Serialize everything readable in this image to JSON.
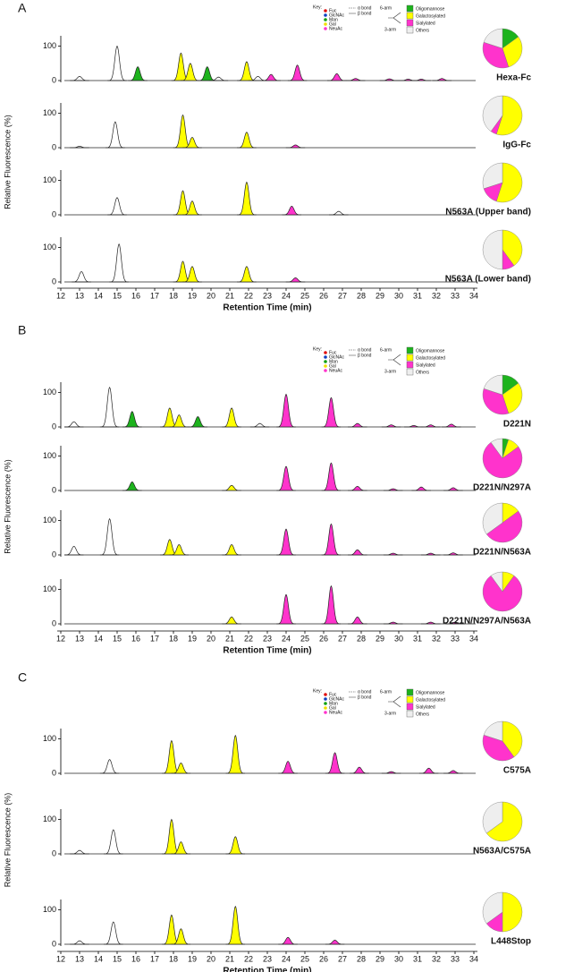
{
  "chart_data": [
    {
      "type": "chromatogram",
      "label": "A",
      "y_label": "Relative Fluorescence (%)",
      "x_label": "Retention Time (min)",
      "xlim": [
        12,
        34
      ],
      "xticks": [
        12,
        13,
        14,
        15,
        16,
        17,
        18,
        19,
        20,
        21,
        22,
        23,
        24,
        25,
        26,
        27,
        28,
        29,
        30,
        31,
        32,
        33,
        34
      ],
      "legend": {
        "labels": [
          "Oligomannose",
          "Galactosylated",
          "Sialylated",
          "Others"
        ],
        "colors": [
          "#1db31d",
          "#ffff00",
          "#ff33cc",
          "#eeeeee"
        ]
      },
      "key": {
        "title": "Key:",
        "items": [
          {
            "name": "Fuc",
            "color": "#e01010"
          },
          {
            "name": "GlcNAc",
            "color": "#1040c0"
          },
          {
            "name": "Man",
            "color": "#10a010"
          },
          {
            "name": "Gal",
            "color": "#f0e000"
          },
          {
            "name": "NeuAc",
            "color": "#ff33cc"
          }
        ],
        "bonds": [
          "α bond",
          "β bond"
        ],
        "arms": [
          "6-arm",
          "3-arm"
        ]
      },
      "traces": [
        {
          "name": "Hexa-Fc",
          "ylim": [
            0,
            130
          ],
          "yticks": [
            0,
            100
          ],
          "x": [
            13,
            15,
            16.1,
            18.4,
            18.9,
            19.8,
            20.4,
            21.9,
            22.5,
            23.2,
            24.6,
            26.7,
            27.7,
            29.5,
            30.5,
            31.2,
            32.3
          ],
          "values": [
            12,
            100,
            40,
            80,
            50,
            40,
            10,
            55,
            12,
            18,
            45,
            20,
            6,
            5,
            4,
            4,
            6
          ],
          "fills": [
            null,
            null,
            "#1db31d",
            "#ffff00",
            "#ffff00",
            "#1db31d",
            null,
            "#ffff00",
            null,
            "#ff33cc",
            "#ff33cc",
            "#ff33cc",
            "#ff33cc",
            "#ff33cc",
            "#ff33cc",
            "#ff33cc",
            "#ff33cc"
          ],
          "pie": [
            15,
            30,
            35,
            20
          ]
        },
        {
          "name": "IgG-Fc",
          "ylim": [
            0,
            130
          ],
          "yticks": [
            0,
            100
          ],
          "x": [
            13,
            14.9,
            18.5,
            19,
            21.9,
            24.5
          ],
          "values": [
            4,
            75,
            95,
            30,
            45,
            8
          ],
          "fills": [
            null,
            null,
            "#ffff00",
            "#ffff00",
            "#ffff00",
            "#ff33cc"
          ],
          "pie": [
            0,
            55,
            5,
            40
          ]
        },
        {
          "name": "N563A (Upper band)",
          "ylim": [
            0,
            130
          ],
          "yticks": [
            0,
            100
          ],
          "x": [
            15,
            18.5,
            19,
            21.9,
            24.3,
            26.8
          ],
          "values": [
            50,
            70,
            40,
            95,
            25,
            10
          ],
          "fills": [
            null,
            "#ffff00",
            "#ffff00",
            "#ffff00",
            "#ff33cc",
            null
          ],
          "pie": [
            0,
            55,
            15,
            30
          ]
        },
        {
          "name": "N563A (Lower band)",
          "ylim": [
            0,
            130
          ],
          "yticks": [
            0,
            100
          ],
          "x": [
            13.1,
            15.1,
            18.5,
            19,
            21.9,
            24.5
          ],
          "values": [
            30,
            110,
            60,
            45,
            45,
            12
          ],
          "fills": [
            null,
            null,
            "#ffff00",
            "#ffff00",
            "#ffff00",
            "#ff33cc"
          ],
          "pie": [
            0,
            40,
            10,
            50
          ]
        }
      ]
    },
    {
      "type": "chromatogram",
      "label": "B",
      "y_label": "Relative Fluorescence (%)",
      "x_label": "Retention Time (min)",
      "xlim": [
        12,
        34
      ],
      "xticks": [
        12,
        13,
        14,
        15,
        16,
        17,
        18,
        19,
        20,
        21,
        22,
        23,
        24,
        25,
        26,
        27,
        28,
        29,
        30,
        31,
        32,
        33,
        34
      ],
      "legend": {
        "labels": [
          "Oligomannose",
          "Galactosylated",
          "Sialylated",
          "Others"
        ],
        "colors": [
          "#1db31d",
          "#ffff00",
          "#ff33cc",
          "#eeeeee"
        ]
      },
      "key": {
        "title": "Key:",
        "items": [
          {
            "name": "Fuc",
            "color": "#e01010"
          },
          {
            "name": "GlcNAc",
            "color": "#1040c0"
          },
          {
            "name": "Man",
            "color": "#10a010"
          },
          {
            "name": "Gal",
            "color": "#f0e000"
          },
          {
            "name": "NeuAc",
            "color": "#ff33cc"
          }
        ],
        "bonds": [
          "α bond",
          "β bond"
        ],
        "arms": [
          "6-arm",
          "3-arm"
        ]
      },
      "traces": [
        {
          "name": "D221N",
          "ylim": [
            0,
            130
          ],
          "yticks": [
            0,
            100
          ],
          "x": [
            12.7,
            14.6,
            15.8,
            17.8,
            18.3,
            19.3,
            21.1,
            22.6,
            24,
            26.4,
            27.8,
            29.6,
            30.8,
            31.7,
            32.8
          ],
          "values": [
            15,
            115,
            45,
            55,
            35,
            30,
            55,
            10,
            95,
            85,
            10,
            6,
            4,
            6,
            8
          ],
          "fills": [
            null,
            null,
            "#1db31d",
            "#ffff00",
            "#ffff00",
            "#1db31d",
            "#ffff00",
            null,
            "#ff33cc",
            "#ff33cc",
            "#ff33cc",
            "#ff33cc",
            "#ff33cc",
            "#ff33cc",
            "#ff33cc"
          ],
          "pie": [
            15,
            30,
            35,
            20
          ]
        },
        {
          "name": "D221N/N297A",
          "ylim": [
            0,
            130
          ],
          "yticks": [
            0,
            100
          ],
          "x": [
            15.8,
            21.1,
            24,
            26.4,
            27.8,
            29.7,
            31.2,
            32.9
          ],
          "values": [
            25,
            15,
            70,
            80,
            12,
            5,
            10,
            8
          ],
          "fills": [
            "#1db31d",
            "#ffff00",
            "#ff33cc",
            "#ff33cc",
            "#ff33cc",
            "#ff33cc",
            "#ff33cc",
            "#ff33cc"
          ],
          "pie": [
            5,
            10,
            75,
            10
          ]
        },
        {
          "name": "D221N/N563A",
          "ylim": [
            0,
            130
          ],
          "yticks": [
            0,
            100
          ],
          "x": [
            12.7,
            14.6,
            17.8,
            18.3,
            21.1,
            24,
            26.4,
            27.8,
            29.7,
            31.7,
            32.9
          ],
          "values": [
            25,
            105,
            45,
            30,
            30,
            75,
            90,
            15,
            5,
            5,
            6
          ],
          "fills": [
            null,
            null,
            "#ffff00",
            "#ffff00",
            "#ffff00",
            "#ff33cc",
            "#ff33cc",
            "#ff33cc",
            "#ff33cc",
            "#ff33cc",
            "#ff33cc"
          ],
          "pie": [
            0,
            15,
            50,
            35
          ]
        },
        {
          "name": "D221N/N297A/N563A",
          "ylim": [
            0,
            130
          ],
          "yticks": [
            0,
            100
          ],
          "x": [
            21.1,
            24,
            26.4,
            27.8,
            29.7,
            31.7,
            33
          ],
          "values": [
            20,
            85,
            110,
            20,
            5,
            5,
            5
          ],
          "fills": [
            "#ffff00",
            "#ff33cc",
            "#ff33cc",
            "#ff33cc",
            "#ff33cc",
            "#ff33cc",
            "#ff33cc"
          ],
          "pie": [
            0,
            10,
            80,
            10
          ]
        }
      ]
    },
    {
      "type": "chromatogram",
      "label": "C",
      "y_label": "Relative Fluorescence (%)",
      "x_label": "Retention Time (min)",
      "xlim": [
        12,
        34
      ],
      "xticks": [
        12,
        13,
        14,
        15,
        16,
        17,
        18,
        19,
        20,
        21,
        22,
        23,
        24,
        25,
        26,
        27,
        28,
        29,
        30,
        31,
        32,
        33,
        34
      ],
      "legend": {
        "labels": [
          "Oligomannose",
          "Galactosylated",
          "Sialylated",
          "Others"
        ],
        "colors": [
          "#1db31d",
          "#ffff00",
          "#ff33cc",
          "#eeeeee"
        ]
      },
      "key": {
        "title": "Key:",
        "items": [
          {
            "name": "Fuc",
            "color": "#e01010"
          },
          {
            "name": "GlcNAc",
            "color": "#1040c0"
          },
          {
            "name": "Man",
            "color": "#10a010"
          },
          {
            "name": "Gal",
            "color": "#f0e000"
          },
          {
            "name": "NeuAc",
            "color": "#ff33cc"
          }
        ],
        "bonds": [
          "α bond",
          "β bond"
        ],
        "arms": [
          "6-arm",
          "3-arm"
        ]
      },
      "traces": [
        {
          "name": "C575A",
          "ylim": [
            0,
            130
          ],
          "yticks": [
            0,
            100
          ],
          "x": [
            14.6,
            17.9,
            18.4,
            21.3,
            24.1,
            26.6,
            27.9,
            29.6,
            31.6,
            32.9
          ],
          "values": [
            40,
            95,
            30,
            110,
            35,
            60,
            18,
            5,
            15,
            8
          ],
          "fills": [
            null,
            "#ffff00",
            "#ffff00",
            "#ffff00",
            "#ff33cc",
            "#ff33cc",
            "#ff33cc",
            "#ff33cc",
            "#ff33cc",
            "#ff33cc"
          ],
          "pie": [
            0,
            40,
            40,
            20
          ]
        },
        {
          "name": "N563A/C575A",
          "ylim": [
            0,
            130
          ],
          "yticks": [
            0,
            100
          ],
          "x": [
            13,
            14.8,
            17.9,
            18.4,
            21.3
          ],
          "values": [
            10,
            70,
            100,
            35,
            50
          ],
          "fills": [
            null,
            null,
            "#ffff00",
            "#ffff00",
            "#ffff00"
          ],
          "pie": [
            0,
            65,
            0,
            35
          ]
        },
        {
          "name": "L448Stop",
          "ylim": [
            0,
            130
          ],
          "yticks": [
            0,
            100
          ],
          "x": [
            13,
            14.8,
            17.9,
            18.4,
            21.3,
            24.1,
            26.6
          ],
          "values": [
            10,
            65,
            85,
            45,
            110,
            20,
            12
          ],
          "fills": [
            null,
            null,
            "#ffff00",
            "#ffff00",
            "#ffff00",
            "#ff33cc",
            "#ff33cc"
          ],
          "pie": [
            0,
            50,
            15,
            35
          ]
        }
      ]
    }
  ]
}
